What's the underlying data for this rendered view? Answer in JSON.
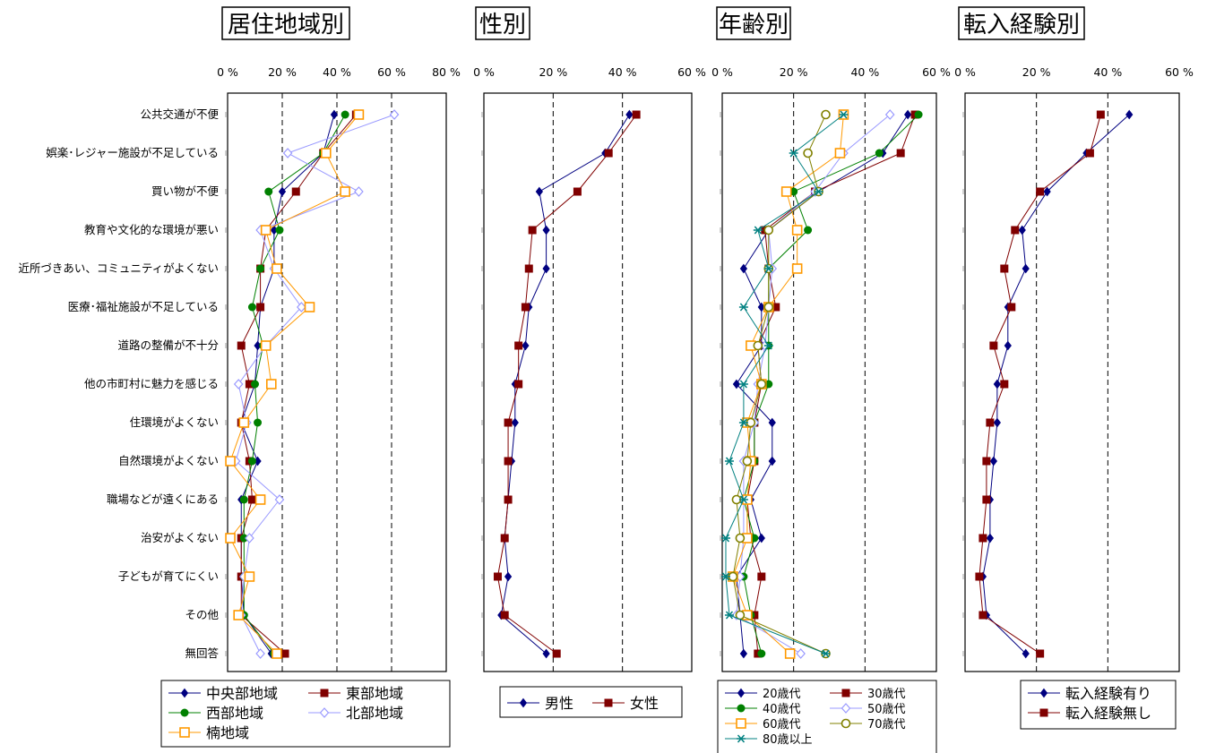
{
  "chart_data": [
    {
      "type": "line",
      "title": "居住地域別",
      "categories": [
        "公共交通が不便",
        "娯楽･レジャー施設が不足している",
        "買い物が不便",
        "教育や文化的な環境が悪い",
        "近所づきあい、コミュニティがよくない",
        "医療･福祉施設が不足している",
        "道路の整備が不十分",
        "他の市町村に魅力を感じる",
        "住環境がよくない",
        "自然環境がよくない",
        "職場などが遠くにある",
        "治安がよくない",
        "子どもが育てにくい",
        "その他",
        "無回答"
      ],
      "x_ticks": [
        "0 %",
        "20 %",
        "40 %",
        "60 %",
        "80 %"
      ],
      "xlim": [
        0,
        80
      ],
      "grid": "dashed at 20, 40, 60",
      "series": [
        {
          "name": "中央部地域",
          "color": "#000080",
          "marker": "diamond",
          "values": [
            39,
            35,
            20,
            17,
            17,
            12,
            11,
            10,
            5,
            11,
            5,
            5,
            5,
            6,
            16
          ]
        },
        {
          "name": "東部地域",
          "color": "#800000",
          "marker": "square",
          "values": [
            47,
            35,
            25,
            14,
            12,
            12,
            5,
            8,
            5,
            8,
            9,
            5,
            5,
            5,
            21
          ]
        },
        {
          "name": "西部地域",
          "color": "#008000",
          "marker": "circle",
          "values": [
            43,
            35,
            15,
            19,
            12,
            9,
            13,
            10,
            11,
            9,
            6,
            6,
            6,
            6,
            17
          ]
        },
        {
          "name": "北部地域",
          "color": "#9999ff",
          "marker": "diamond-open",
          "values": [
            61,
            22,
            48,
            12,
            17,
            27,
            14,
            4,
            7,
            3,
            19,
            8,
            6,
            5,
            12
          ]
        },
        {
          "name": "楠地域",
          "color": "#ff9900",
          "marker": "square-open",
          "values": [
            48,
            36,
            43,
            14,
            18,
            30,
            14,
            16,
            6,
            1,
            12,
            1,
            8,
            4,
            18
          ]
        }
      ],
      "legend": [
        "中央部地域",
        "東部地域",
        "西部地域",
        "北部地域",
        "楠地域"
      ]
    },
    {
      "type": "line",
      "title": "性別",
      "x_ticks": [
        "0 %",
        "20 %",
        "40 %",
        "60 %"
      ],
      "xlim": [
        0,
        60
      ],
      "grid": "dashed at 20, 40",
      "series": [
        {
          "name": "男性",
          "color": "#000080",
          "marker": "diamond",
          "values": [
            42,
            35,
            16,
            18,
            18,
            13,
            12,
            9,
            9,
            8,
            7,
            6,
            7,
            5,
            18
          ]
        },
        {
          "name": "女性",
          "color": "#800000",
          "marker": "square",
          "values": [
            44,
            36,
            27,
            14,
            13,
            12,
            10,
            10,
            7,
            7,
            7,
            6,
            4,
            6,
            21
          ]
        }
      ],
      "legend": [
        "男性",
        "女性"
      ]
    },
    {
      "type": "line",
      "title": "年齢別",
      "x_ticks": [
        "0 %",
        "20 %",
        "40 %",
        "60 %"
      ],
      "xlim": [
        0,
        60
      ],
      "grid": "dashed at 20, 40",
      "series": [
        {
          "name": "20歳代",
          "color": "#000080",
          "marker": "diamond",
          "values": [
            52,
            45,
            27,
            13,
            6,
            11,
            11,
            4,
            14,
            14,
            8,
            11,
            4,
            5,
            6
          ]
        },
        {
          "name": "30歳代",
          "color": "#800000",
          "marker": "square",
          "values": [
            54,
            50,
            26,
            12,
            13,
            15,
            10,
            11,
            9,
            9,
            7,
            8,
            11,
            9,
            10
          ]
        },
        {
          "name": "40歳代",
          "color": "#008000",
          "marker": "circle",
          "values": [
            55,
            44,
            20,
            24,
            13,
            13,
            13,
            13,
            9,
            9,
            6,
            9,
            6,
            8,
            11
          ]
        },
        {
          "name": "50歳代",
          "color": "#9999ff",
          "marker": "diamond-open",
          "values": [
            47,
            34,
            26,
            13,
            14,
            13,
            12,
            10,
            9,
            6,
            6,
            6,
            5,
            4,
            22
          ]
        },
        {
          "name": "60歳代",
          "color": "#ff9900",
          "marker": "square-open",
          "values": [
            34,
            33,
            18,
            21,
            21,
            13,
            8,
            11,
            7,
            8,
            7,
            7,
            3,
            7,
            19
          ]
        },
        {
          "name": "70歳代",
          "color": "#808000",
          "marker": "circle-open",
          "values": [
            29,
            24,
            27,
            13,
            13,
            13,
            10,
            11,
            8,
            7,
            4,
            5,
            3,
            5,
            29
          ]
        },
        {
          "name": "80歳以上",
          "color": "#008080",
          "marker": "asterisk",
          "values": [
            34,
            20,
            27,
            10,
            13,
            6,
            13,
            6,
            6,
            2,
            6,
            1,
            1,
            2,
            29
          ]
        }
      ],
      "legend": [
        "20歳代",
        "30歳代",
        "40歳代",
        "50歳代",
        "60歳代",
        "70歳代",
        "80歳以上"
      ]
    },
    {
      "type": "line",
      "title": "転入経験別",
      "x_ticks": [
        "0 %",
        "20 %",
        "40 %",
        "60 %"
      ],
      "xlim": [
        0,
        60
      ],
      "grid": "dashed at 20, 40",
      "series": [
        {
          "name": "転入経験有り",
          "color": "#000080",
          "marker": "diamond",
          "values": [
            46,
            34,
            23,
            16,
            17,
            12,
            12,
            9,
            9,
            8,
            7,
            7,
            5,
            6,
            17
          ]
        },
        {
          "name": "転入経験無し",
          "color": "#800000",
          "marker": "square",
          "values": [
            38,
            35,
            21,
            14,
            11,
            13,
            8,
            11,
            7,
            6,
            6,
            5,
            4,
            5,
            21
          ]
        }
      ],
      "legend": [
        "転入経験有り",
        "転入経験無し"
      ]
    }
  ]
}
